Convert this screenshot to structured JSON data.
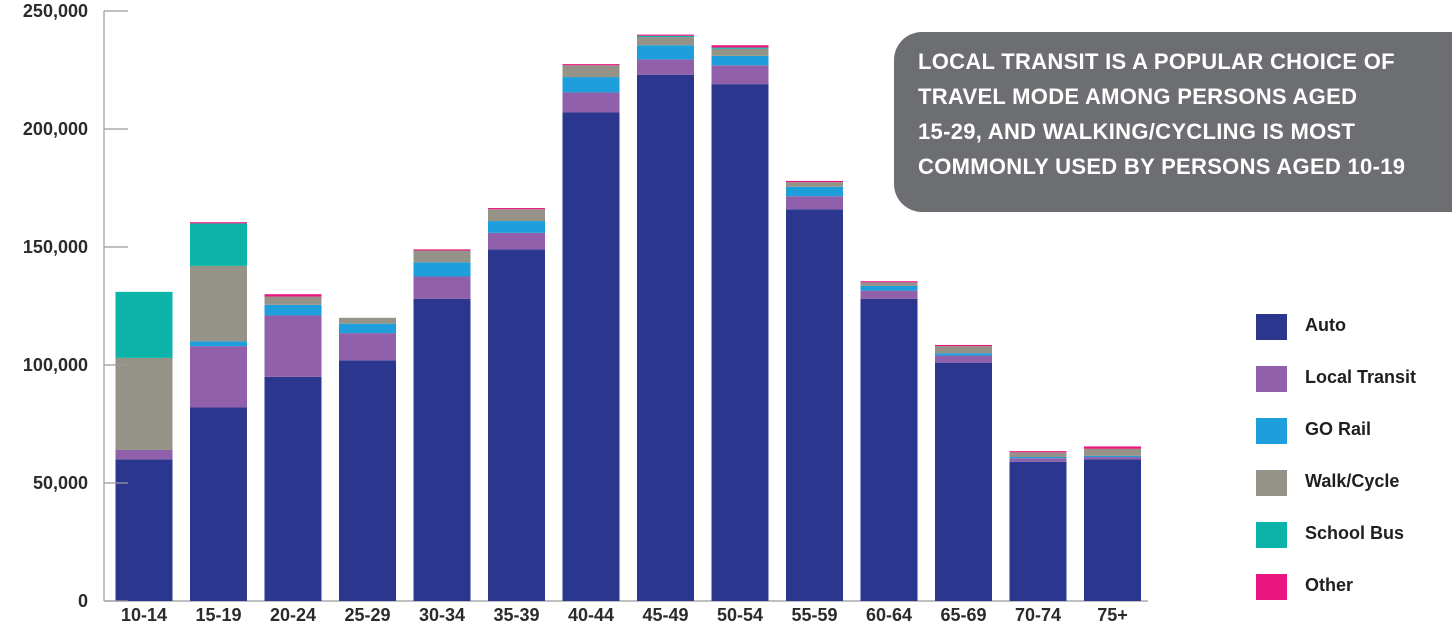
{
  "chart_data": {
    "type": "bar",
    "stacked": true,
    "categories": [
      "10-14",
      "15-19",
      "20-24",
      "25-29",
      "30-34",
      "35-39",
      "40-44",
      "45-49",
      "50-54",
      "55-59",
      "60-64",
      "65-69",
      "70-74",
      "75+"
    ],
    "series": [
      {
        "name": "Auto",
        "color": "#2b378f",
        "values": [
          60000,
          82000,
          95000,
          102000,
          128000,
          149000,
          207000,
          223000,
          219000,
          166000,
          128000,
          101000,
          59000,
          60000
        ]
      },
      {
        "name": "Local Transit",
        "color": "#9160ab",
        "values": [
          4000,
          26000,
          26000,
          11500,
          9500,
          7000,
          8500,
          6500,
          8000,
          5500,
          3500,
          3000,
          1500,
          1000
        ]
      },
      {
        "name": "GO Rail",
        "color": "#1e9fdc",
        "values": [
          0,
          2000,
          4500,
          4000,
          6000,
          5000,
          6500,
          6000,
          4000,
          4000,
          2000,
          1000,
          500,
          500
        ]
      },
      {
        "name": "Walk/Cycle",
        "color": "#959387",
        "values": [
          39000,
          32000,
          3500,
          2500,
          5000,
          5000,
          5000,
          3500,
          3000,
          2000,
          1500,
          3000,
          2000,
          3000
        ]
      },
      {
        "name": "School Bus",
        "color": "#0bb3a8",
        "values": [
          28000,
          18000,
          0,
          0,
          0,
          0,
          0,
          500,
          500,
          0,
          0,
          0,
          0,
          0
        ]
      },
      {
        "name": "Other",
        "color": "#e8167e",
        "values": [
          0,
          500,
          1000,
          0,
          500,
          500,
          500,
          500,
          1000,
          500,
          500,
          500,
          500,
          1000
        ]
      }
    ],
    "yticks": [
      "0",
      "50,000",
      "100,000",
      "150,000",
      "200,000",
      "250,000"
    ],
    "ylim": [
      0,
      250000
    ],
    "xlabel": "",
    "ylabel": "",
    "title": "",
    "legend_position": "right",
    "grid": false
  },
  "callout": {
    "lines": [
      "LOCAL TRANSIT IS A POPULAR CHOICE OF",
      "TRAVEL MODE AMONG PERSONS AGED",
      "15-29, AND WALKING/CYCLING IS MOST",
      "COMMONLY USED BY PERSONS AGED 10-19"
    ],
    "background": "#6d6e71"
  }
}
